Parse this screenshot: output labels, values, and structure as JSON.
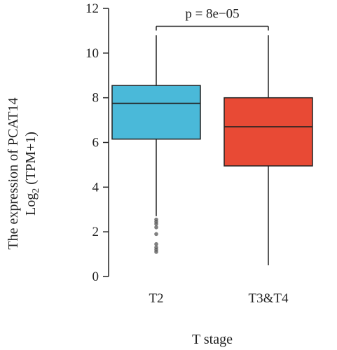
{
  "chart_data": {
    "type": "box",
    "title": "",
    "ylabel_line1": "The expression of PCAT14",
    "ylabel_line2_prefix": "Log",
    "ylabel_line2_sub": "2",
    "ylabel_line2_suffix": " (TPM+1)",
    "xlabel": "T stage",
    "ylim": [
      0,
      12
    ],
    "yticks": [
      0,
      2,
      4,
      6,
      8,
      10,
      12
    ],
    "categories": [
      "T2",
      "T3&T4"
    ],
    "boxes": [
      {
        "name": "T2",
        "color": "#4ab9d9",
        "whisker_low": 2.7,
        "q1": 6.15,
        "median": 7.75,
        "q3": 8.55,
        "whisker_high": 10.8,
        "outliers": [
          2.55,
          2.45,
          2.35,
          2.2,
          1.9,
          1.45,
          1.3,
          1.2,
          1.1
        ]
      },
      {
        "name": "T3&T4",
        "color": "#e84a35",
        "whisker_low": 0.5,
        "q1": 4.95,
        "median": 6.7,
        "q3": 8.0,
        "whisker_high": 10.8,
        "outliers": []
      }
    ],
    "annotation": {
      "text": "p = 8e−05",
      "bracket_y": 11.2
    },
    "grid": false
  }
}
